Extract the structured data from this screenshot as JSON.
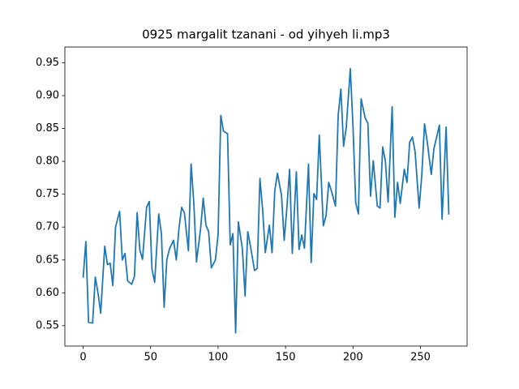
{
  "chart_data": {
    "type": "line",
    "title": "0925 margalit tzanani - od yihyeh li.mp3",
    "x": [
      0,
      2,
      4,
      7,
      9,
      11,
      13,
      16,
      18,
      20,
      22,
      24,
      27,
      29,
      31,
      33,
      36,
      38,
      40,
      42,
      44,
      47,
      49,
      51,
      53,
      56,
      58,
      60,
      62,
      64,
      67,
      69,
      71,
      73,
      75,
      78,
      80,
      82,
      84,
      87,
      89,
      91,
      93,
      95,
      98,
      100,
      102,
      104,
      107,
      109,
      111,
      113,
      115,
      118,
      120,
      122,
      124,
      127,
      129,
      131,
      133,
      135,
      138,
      140,
      142,
      144,
      147,
      149,
      151,
      153,
      155,
      158,
      160,
      162,
      164,
      167,
      169,
      171,
      173,
      175,
      178,
      180,
      182,
      184,
      187,
      189,
      191,
      193,
      195,
      198,
      200,
      202,
      204,
      206,
      209,
      211,
      213,
      215,
      218,
      220,
      222,
      224,
      226,
      229,
      231,
      233,
      235,
      238,
      240,
      242,
      244,
      246,
      249,
      251,
      253,
      255,
      258,
      260,
      262,
      264,
      266,
      269,
      271
    ],
    "series": [
      {
        "color": "#1f77b4",
        "values": [
          0.623,
          0.678,
          0.555,
          0.554,
          0.624,
          0.6,
          0.569,
          0.671,
          0.643,
          0.645,
          0.611,
          0.7,
          0.724,
          0.65,
          0.66,
          0.618,
          0.613,
          0.625,
          0.722,
          0.665,
          0.651,
          0.73,
          0.739,
          0.636,
          0.616,
          0.72,
          0.69,
          0.578,
          0.65,
          0.667,
          0.68,
          0.65,
          0.698,
          0.73,
          0.722,
          0.664,
          0.796,
          0.737,
          0.647,
          0.697,
          0.744,
          0.703,
          0.693,
          0.638,
          0.65,
          0.688,
          0.87,
          0.846,
          0.842,
          0.673,
          0.69,
          0.539,
          0.708,
          0.667,
          0.595,
          0.693,
          0.671,
          0.634,
          0.637,
          0.774,
          0.727,
          0.661,
          0.703,
          0.661,
          0.755,
          0.782,
          0.748,
          0.68,
          0.73,
          0.788,
          0.66,
          0.784,
          0.666,
          0.688,
          0.668,
          0.796,
          0.646,
          0.751,
          0.742,
          0.84,
          0.702,
          0.717,
          0.768,
          0.755,
          0.732,
          0.87,
          0.91,
          0.823,
          0.852,
          0.941,
          0.852,
          0.737,
          0.72,
          0.895,
          0.866,
          0.858,
          0.747,
          0.801,
          0.732,
          0.729,
          0.822,
          0.8,
          0.738,
          0.883,
          0.715,
          0.768,
          0.736,
          0.788,
          0.768,
          0.829,
          0.837,
          0.815,
          0.729,
          0.78,
          0.857,
          0.83,
          0.78,
          0.82,
          0.837,
          0.855,
          0.712,
          0.852,
          0.719
        ]
      }
    ],
    "xlim": [
      -13.55,
      284.55
    ],
    "xticks": [
      0,
      50,
      100,
      150,
      200,
      250
    ],
    "ylim": [
      0.519,
      0.974
    ],
    "yticks": [
      0.55,
      {
        "value": 0.6,
        "label": "0.60"
      },
      0.65,
      {
        "value": 0.7,
        "label": "0.70"
      },
      0.75,
      {
        "value": 0.8,
        "label": "0.80"
      },
      0.85,
      {
        "value": 0.9,
        "label": "0.90"
      },
      0.95
    ],
    "grid": false
  }
}
